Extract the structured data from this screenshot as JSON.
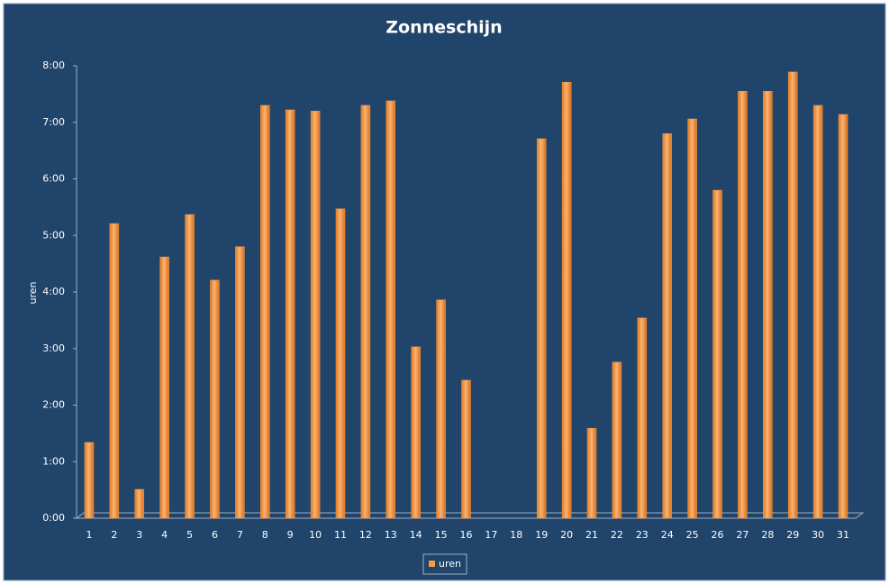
{
  "chart_data": {
    "type": "bar",
    "title": "Zonneschijn",
    "y_label": "uren",
    "categories": [
      "1",
      "2",
      "3",
      "4",
      "5",
      "6",
      "7",
      "8",
      "9",
      "10",
      "11",
      "12",
      "13",
      "14",
      "15",
      "16",
      "17",
      "18",
      "19",
      "20",
      "21",
      "22",
      "23",
      "24",
      "25",
      "26",
      "27",
      "28",
      "29",
      "30",
      "31"
    ],
    "series": [
      {
        "name": "uren",
        "color": "#f59a45",
        "values": [
          1.34,
          5.21,
          0.51,
          4.62,
          5.37,
          4.21,
          4.8,
          7.3,
          7.22,
          7.2,
          5.47,
          7.3,
          7.38,
          3.03,
          3.86,
          2.44,
          null,
          null,
          6.71,
          7.71,
          1.59,
          2.76,
          3.54,
          6.8,
          7.06,
          5.8,
          7.55,
          7.55,
          7.89,
          7.3,
          7.14
        ]
      }
    ],
    "ylim": [
      0,
      8
    ],
    "yticks": [
      {
        "value": 0,
        "label": "0:00"
      },
      {
        "value": 1,
        "label": "1:00"
      },
      {
        "value": 2,
        "label": "2:00"
      },
      {
        "value": 3,
        "label": "3:00"
      },
      {
        "value": 4,
        "label": "4:00"
      },
      {
        "value": 5,
        "label": "5:00"
      },
      {
        "value": 6,
        "label": "6:00"
      },
      {
        "value": 7,
        "label": "7:00"
      },
      {
        "value": 8,
        "label": "8:00"
      }
    ],
    "legend": "bottom"
  }
}
